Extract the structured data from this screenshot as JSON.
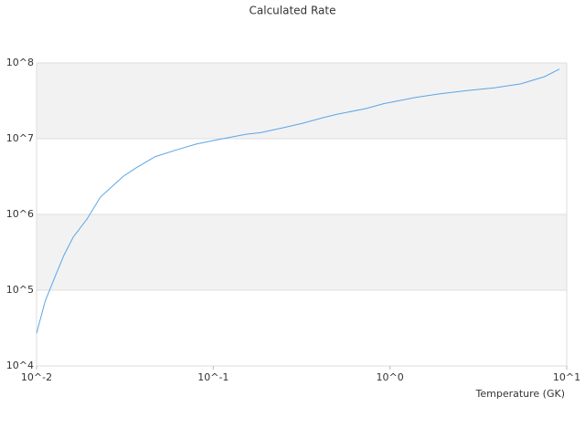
{
  "chart_data": {
    "type": "line",
    "title": "Calculated Rate",
    "x_label": "Temperature (GK)",
    "x": [
      0.01,
      0.0112,
      0.0127,
      0.0143,
      0.0161,
      0.0193,
      0.023,
      0.026,
      0.031,
      0.037,
      0.047,
      0.063,
      0.08,
      0.108,
      0.155,
      0.185,
      0.25,
      0.32,
      0.42,
      0.5,
      0.73,
      0.92,
      1.4,
      1.9,
      2.7,
      3.9,
      5.5,
      7.5,
      9.1
    ],
    "series": [
      {
        "name": "Calculated Rate",
        "color": "#5aa5e6",
        "values": [
          27000,
          72000,
          150000,
          290000,
          500000,
          870000,
          1700000,
          2200000,
          3200000,
          4200000,
          5800000,
          7200000,
          8500000,
          9800000,
          11500000,
          12000000,
          14000000,
          16000000,
          19000000,
          21000000,
          25000000,
          29000000,
          35000000,
          39000000,
          43000000,
          47000000,
          53000000,
          66000000,
          83000000
        ]
      }
    ],
    "xscale": "log",
    "yscale": "log",
    "xlim": [
      0.01,
      10
    ],
    "ylim": [
      10000,
      100000000
    ],
    "xticks": [
      {
        "value": 0.01,
        "label": "10^-2"
      },
      {
        "value": 0.1,
        "label": "10^-1"
      },
      {
        "value": 1,
        "label": "10^0"
      },
      {
        "value": 10,
        "label": "10^1"
      }
    ],
    "yticks": [
      {
        "value": 10000,
        "label": "10^4"
      },
      {
        "value": 100000,
        "label": "10^5"
      },
      {
        "value": 1000000,
        "label": "10^6"
      },
      {
        "value": 10000000,
        "label": "10^7"
      },
      {
        "value": 100000000,
        "label": "10^8"
      }
    ],
    "band_color": "#f2f2f2"
  }
}
